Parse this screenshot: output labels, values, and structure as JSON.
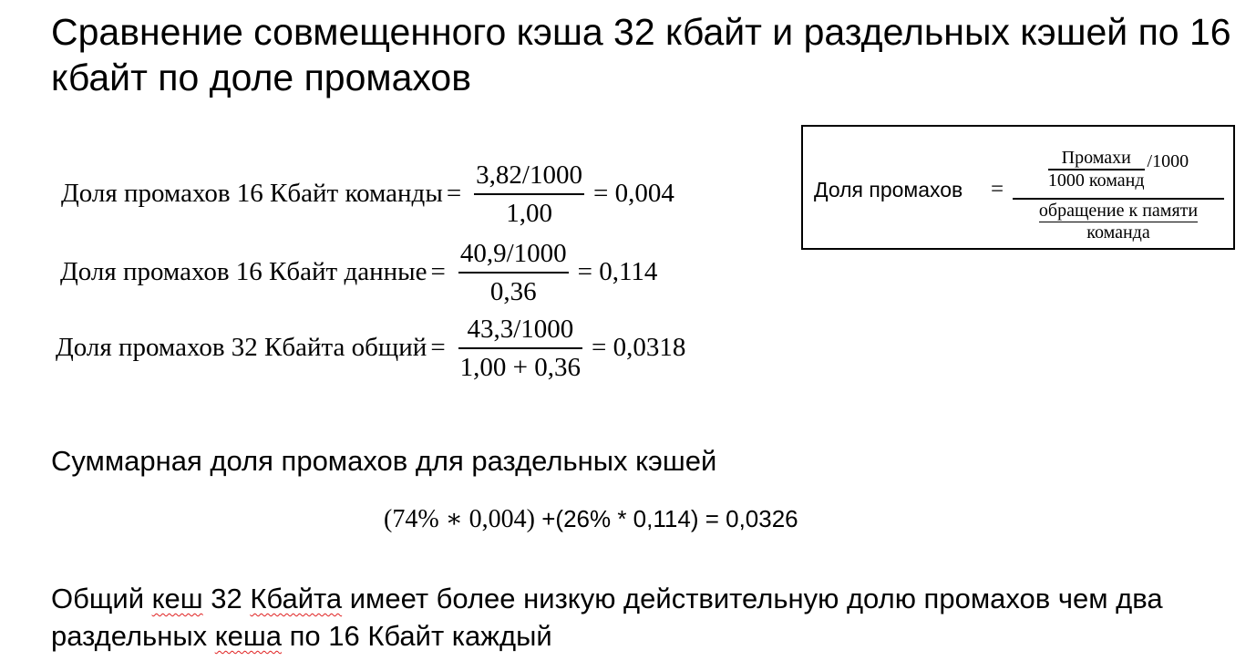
{
  "title": "Сравнение совмещенного кэша 32 кбайт и раздельных кэшей по 16 кбайт по доле промахов",
  "formulas": [
    {
      "label": "Доля промахов 16 Кбайт команды",
      "eq": "=",
      "numerator": "3,82/1000",
      "denominator": "1,00",
      "result": "= 0,004"
    },
    {
      "label": "Доля промахов 16 Кбайт данные",
      "eq": "=",
      "numerator": "40,9/1000",
      "denominator": "0,36",
      "result": "= 0,114"
    },
    {
      "label": "Доля промахов 32 Кбайта общий",
      "eq": "=",
      "numerator": "43,3/1000",
      "denominator": "1,00 + 0,36",
      "result": "= 0,0318"
    }
  ],
  "definition": {
    "label": "Доля промахов",
    "eq": "=",
    "top_numerator": "Промахи",
    "top_denominator": "1000 команд",
    "top_suffix": "/1000",
    "bottom_numerator": "обращение к памяти",
    "bottom_denominator": "команда"
  },
  "summary": {
    "heading": "Суммарная доля промахов для раздельных кэшей",
    "calc_math": "(74% ∗ 0,004)",
    "calc_rest": " +(26% * 0,114) = 0,0326"
  },
  "conclusion": {
    "part1": "Общий ",
    "word1": "кеш",
    "part2": " 32 ",
    "word2": "Кбайта",
    "part3": " имеет более низкую действительную долю промахов чем два раздельных ",
    "word3": "кеша",
    "part4": " по 16 Кбайт каждый"
  }
}
